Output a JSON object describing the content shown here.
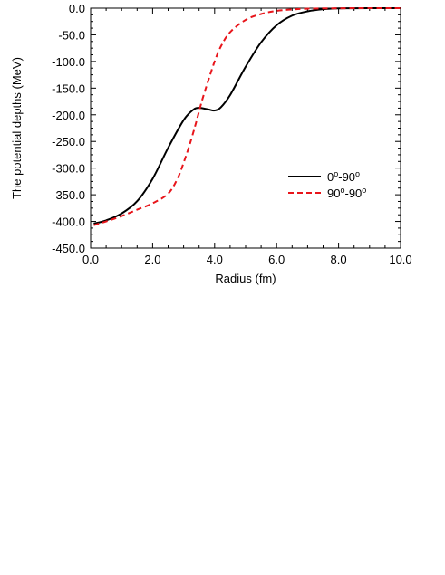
{
  "chart_data": {
    "type": "line",
    "xlabel": "Radius (fm)",
    "ylabel": "The potential depths (MeV)",
    "xlim": [
      0.0,
      10.0
    ],
    "ylim": [
      -450.0,
      0.0
    ],
    "xticks": [
      "0.0",
      "2.0",
      "4.0",
      "6.0",
      "8.0",
      "10.0"
    ],
    "xtick_values": [
      0,
      2,
      4,
      6,
      8,
      10
    ],
    "yticks": [
      "0.0",
      "-50.0",
      "-100.0",
      "-150.0",
      "-200.0",
      "-250.0",
      "-300.0",
      "-350.0",
      "-400.0",
      "-450.0"
    ],
    "ytick_values": [
      0,
      -50,
      -100,
      -150,
      -200,
      -250,
      -300,
      -350,
      -400,
      -450
    ],
    "legend_position": "center-right",
    "series": [
      {
        "name": "0°-90°",
        "label_base": [
          "0",
          "-90"
        ],
        "color": "#000000",
        "dash": "solid",
        "x": [
          0.1,
          0.5,
          1.0,
          1.5,
          2.0,
          2.5,
          3.0,
          3.3,
          3.5,
          3.8,
          4.0,
          4.2,
          4.5,
          5.0,
          5.5,
          6.0,
          6.5,
          7.0,
          7.5,
          8.0,
          9.0,
          10.0
        ],
        "y": [
          -404,
          -398,
          -385,
          -362,
          -320,
          -262,
          -210,
          -191,
          -187,
          -190,
          -192,
          -186,
          -163,
          -110,
          -64,
          -32,
          -14,
          -6,
          -2,
          -0.5,
          0,
          0
        ]
      },
      {
        "name": "90°-90°",
        "label_base": [
          "90",
          "-90"
        ],
        "color": "#e8151b",
        "dash": "dashed",
        "x": [
          0.1,
          0.5,
          1.0,
          1.5,
          2.0,
          2.5,
          2.8,
          3.0,
          3.2,
          3.4,
          3.6,
          3.8,
          4.0,
          4.2,
          4.5,
          5.0,
          5.5,
          6.0,
          6.5,
          7.0,
          8.0,
          9.0,
          10.0
        ],
        "y": [
          -407,
          -400,
          -390,
          -378,
          -366,
          -348,
          -320,
          -290,
          -255,
          -215,
          -172,
          -135,
          -100,
          -72,
          -45,
          -22,
          -11,
          -5,
          -2.5,
          -1,
          -0.2,
          0,
          0
        ]
      }
    ]
  }
}
